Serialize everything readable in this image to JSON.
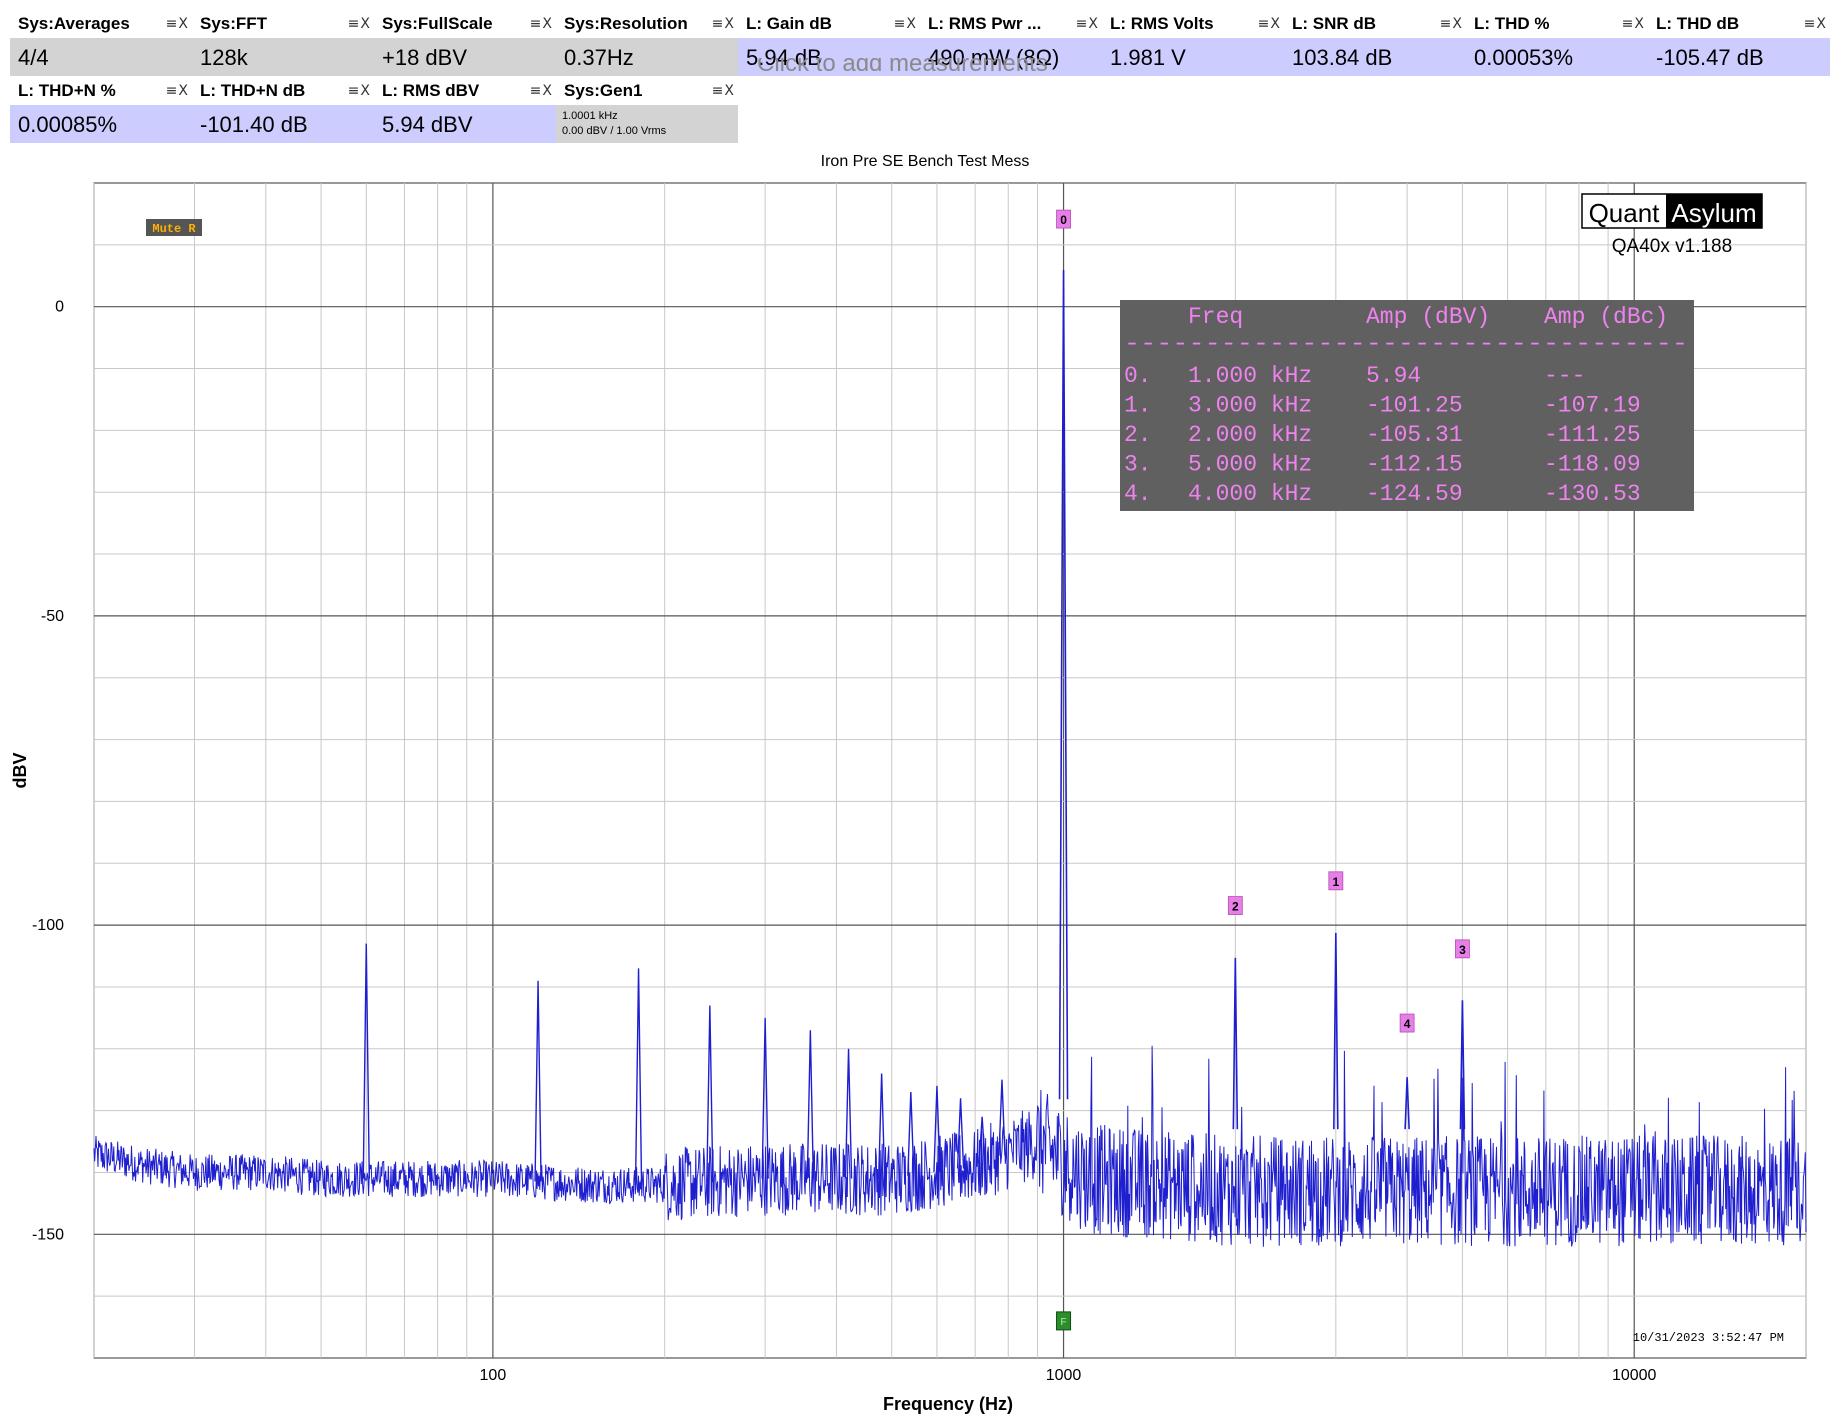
{
  "measurements": [
    {
      "name": "Sys:Averages",
      "value": "4/4",
      "style": "gray"
    },
    {
      "name": "Sys:FFT",
      "value": "128k",
      "style": "gray"
    },
    {
      "name": "Sys:FullScale",
      "value": "+18 dBV",
      "style": "gray"
    },
    {
      "name": "Sys:Resolution",
      "value": "0.37Hz",
      "style": "gray"
    },
    {
      "name": "L: Gain dB",
      "value": "5.94 dB",
      "style": "blue"
    },
    {
      "name": "L: RMS Pwr ...",
      "value": "490 mW (8Ω)",
      "style": "blue"
    },
    {
      "name": "L: RMS Volts",
      "value": "1.981 V",
      "style": "blue"
    },
    {
      "name": "L: SNR dB",
      "value": "103.84 dB",
      "style": "blue"
    },
    {
      "name": "L: THD %",
      "value": "0.00053%",
      "style": "blue"
    },
    {
      "name": "L: THD dB",
      "value": "-105.47 dB",
      "style": "blue"
    },
    {
      "name": "L: THD+N %",
      "value": "0.00085%",
      "style": "blue"
    },
    {
      "name": "L: THD+N dB",
      "value": "-101.40 dB",
      "style": "blue"
    },
    {
      "name": "L: RMS dBV",
      "value": "5.94 dBV",
      "style": "blue"
    },
    {
      "name": "Sys:Gen1",
      "line1": "1.0001 kHz",
      "line2": "0.00 dBV  / 1.00 Vrms",
      "style": "gray"
    }
  ],
  "tile_controls": "≡X",
  "add_hint": "Click to add measurements",
  "chart_data": {
    "type": "line",
    "title": "Iron Pre SE Bench Test Mess",
    "xlabel": "Frequency (Hz)",
    "ylabel": "dBV",
    "xscale": "log",
    "xlim": [
      20,
      20000
    ],
    "ylim": [
      -170,
      20
    ],
    "x_ticks": [
      {
        "value": 100,
        "label": "100"
      },
      {
        "value": 1000,
        "label": "1000"
      },
      {
        "value": 10000,
        "label": "10000"
      }
    ],
    "y_ticks": [
      {
        "value": 0,
        "label": "0"
      },
      {
        "value": -50,
        "label": "-50"
      },
      {
        "value": -100,
        "label": "-100"
      },
      {
        "value": -150,
        "label": "-150"
      }
    ],
    "grid": true,
    "series_color": "#1f1fd0",
    "noise_floor": [
      [
        20,
        -137
      ],
      [
        25,
        -139
      ],
      [
        30,
        -140
      ],
      [
        40,
        -140
      ],
      [
        50,
        -141
      ],
      [
        60,
        -141
      ],
      [
        80,
        -141
      ],
      [
        100,
        -141
      ],
      [
        150,
        -142
      ],
      [
        200,
        -142
      ],
      [
        300,
        -141
      ],
      [
        500,
        -141
      ],
      [
        700,
        -139
      ],
      [
        900,
        -135
      ],
      [
        1100,
        -141
      ],
      [
        2000,
        -143
      ],
      [
        5000,
        -143
      ],
      [
        10000,
        -143
      ],
      [
        20000,
        -143
      ]
    ],
    "spurs": [
      {
        "f": 60,
        "db": -103
      },
      {
        "f": 120,
        "db": -109
      },
      {
        "f": 180,
        "db": -107
      },
      {
        "f": 240,
        "db": -113
      },
      {
        "f": 300,
        "db": -115
      },
      {
        "f": 360,
        "db": -117
      },
      {
        "f": 420,
        "db": -120
      },
      {
        "f": 480,
        "db": -124
      },
      {
        "f": 540,
        "db": -127
      },
      {
        "f": 600,
        "db": -126
      },
      {
        "f": 660,
        "db": -128
      },
      {
        "f": 720,
        "db": -131
      },
      {
        "f": 780,
        "db": -125
      }
    ],
    "harmonics": [
      {
        "label": "0",
        "f": 1000,
        "db": 5.94
      },
      {
        "label": "1",
        "f": 3000,
        "db": -101.25
      },
      {
        "label": "2",
        "f": 2000,
        "db": -105.31
      },
      {
        "label": "3",
        "f": 5000,
        "db": -112.15
      },
      {
        "label": "4",
        "f": 4000,
        "db": -124.59
      }
    ],
    "marker_label_db": {
      "0": 14,
      "1": -93,
      "2": -97,
      "3": -104,
      "4": -116
    },
    "harmonic_table": {
      "headers": [
        "Freq",
        "Amp (dBV)",
        "Amp (dBc)"
      ],
      "separator": "-----------------------------------",
      "rows": [
        {
          "idx": "0.",
          "freq": "1.000 kHz",
          "dbv": "5.94",
          "dbc": "---"
        },
        {
          "idx": "1.",
          "freq": "3.000 kHz",
          "dbv": "-101.25",
          "dbc": "-107.19"
        },
        {
          "idx": "2.",
          "freq": "2.000 kHz",
          "dbv": "-105.31",
          "dbc": "-111.25"
        },
        {
          "idx": "3.",
          "freq": "5.000 kHz",
          "dbv": "-112.15",
          "dbc": "-118.09"
        },
        {
          "idx": "4.",
          "freq": "4.000 kHz",
          "dbv": "-124.59",
          "dbc": "-130.53"
        }
      ]
    },
    "mute_label": "Mute R",
    "logo": {
      "left": "Quant",
      "right": "Asylum",
      "version": "QA40x v1.188"
    },
    "timestamp": "10/31/2023 3:52:47 PM",
    "gen_marker": "F"
  }
}
